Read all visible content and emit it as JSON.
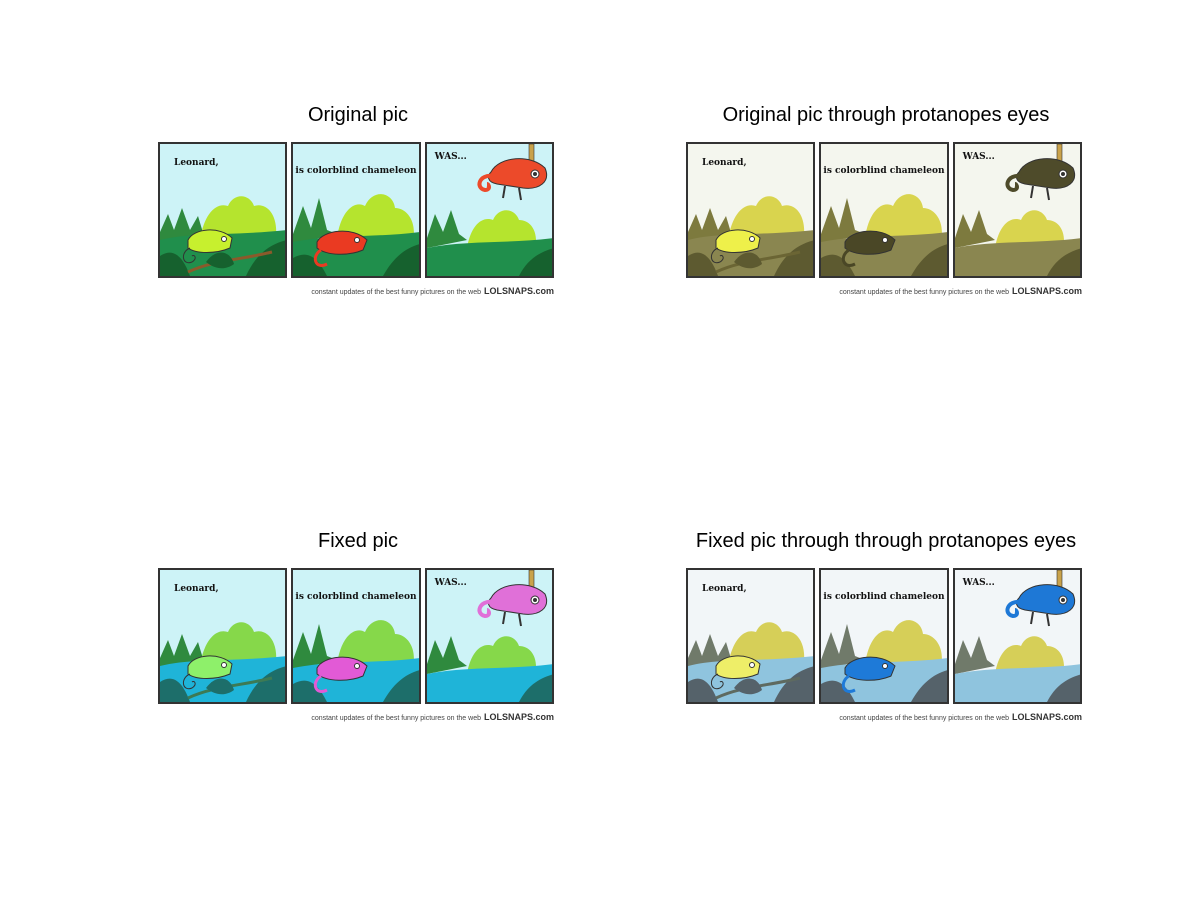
{
  "figure": {
    "subplots": [
      {
        "title": "Original pic",
        "captions": [
          "Leonard,",
          "is colorblind chameleon",
          "WAS..."
        ],
        "credit_text": "constant updates of the best funny pictures on the web",
        "credit_brand": "LOLSNAPS.com",
        "colors": {
          "sky": "#cdf3f7",
          "bg_plant": "#2f8a3e",
          "bush": "#b5e42e",
          "ground": "#208f4c",
          "dark_leaf": "#16612e",
          "chameleon1": "#c7f02e",
          "chameleon2": "#ea3a22",
          "chameleon3": "#ec4a2a",
          "stem": "#8b5a2b"
        }
      },
      {
        "title": "Original pic through protanopes eyes",
        "captions": [
          "Leonard,",
          "is colorblind chameleon",
          "WAS..."
        ],
        "credit_text": "constant updates of the best funny pictures on the web",
        "credit_brand": "LOLSNAPS.com",
        "colors": {
          "sky": "#f4f6ee",
          "bg_plant": "#7d7a3e",
          "bush": "#d9d44e",
          "ground": "#8a8650",
          "dark_leaf": "#5d5a30",
          "chameleon1": "#eef04a",
          "chameleon2": "#4a4726",
          "chameleon3": "#4e4b2a",
          "stem": "#6b6534"
        }
      },
      {
        "title": "Fixed pic",
        "captions": [
          "Leonard,",
          "is colorblind chameleon",
          "WAS..."
        ],
        "credit_text": "constant updates of the best funny pictures on the web",
        "credit_brand": "LOLSNAPS.com",
        "colors": {
          "sky": "#cdf3f7",
          "bg_plant": "#2f8a3e",
          "bush": "#86d84a",
          "ground": "#1fb4d8",
          "dark_leaf": "#1d6e6a",
          "chameleon1": "#8ef06a",
          "chameleon2": "#e25ad6",
          "chameleon3": "#e070d8",
          "stem": "#3d7a54"
        }
      },
      {
        "title": "Fixed pic through through protanopes eyes",
        "captions": [
          "Leonard,",
          "is colorblind chameleon",
          "WAS..."
        ],
        "credit_text": "constant updates of the best funny pictures on the web",
        "credit_brand": "LOLSNAPS.com",
        "colors": {
          "sky": "#f2f6f8",
          "bg_plant": "#707a6a",
          "bush": "#d6cf58",
          "ground": "#8fc4de",
          "dark_leaf": "#55626a",
          "chameleon1": "#eeee68",
          "chameleon2": "#1e7ad8",
          "chameleon3": "#1e78d6",
          "stem": "#5e6a60"
        }
      }
    ]
  }
}
